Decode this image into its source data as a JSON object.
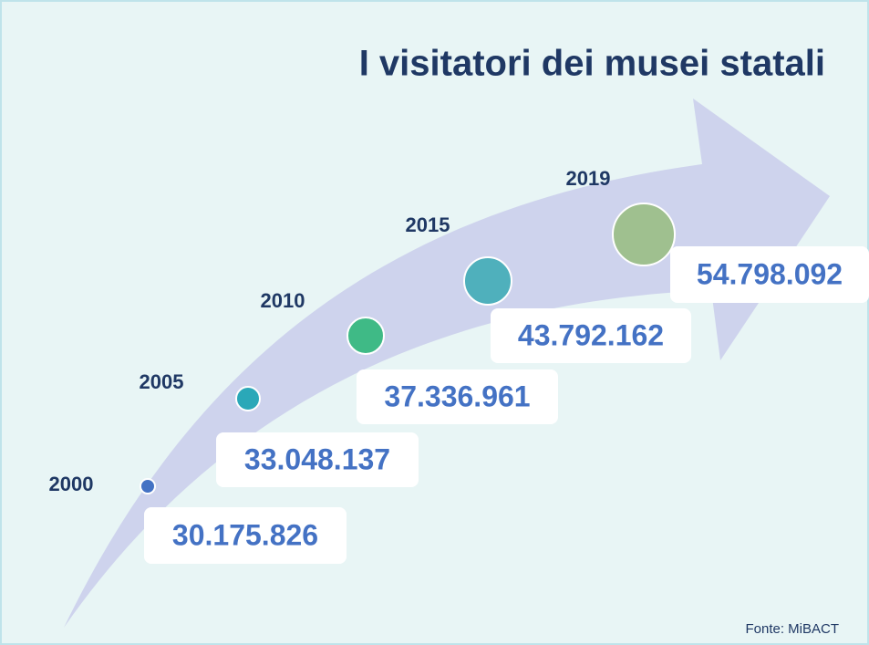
{
  "title": "I visitatori dei musei statali",
  "items": [
    {
      "year": "2000",
      "value": "30.175.826"
    },
    {
      "year": "2005",
      "value": "33.048.137"
    },
    {
      "year": "2010",
      "value": "37.336.961"
    },
    {
      "year": "2015",
      "value": "43.792.162"
    },
    {
      "year": "2019",
      "value": "54.798.092"
    }
  ],
  "source": "Fonte: MiBACT"
}
